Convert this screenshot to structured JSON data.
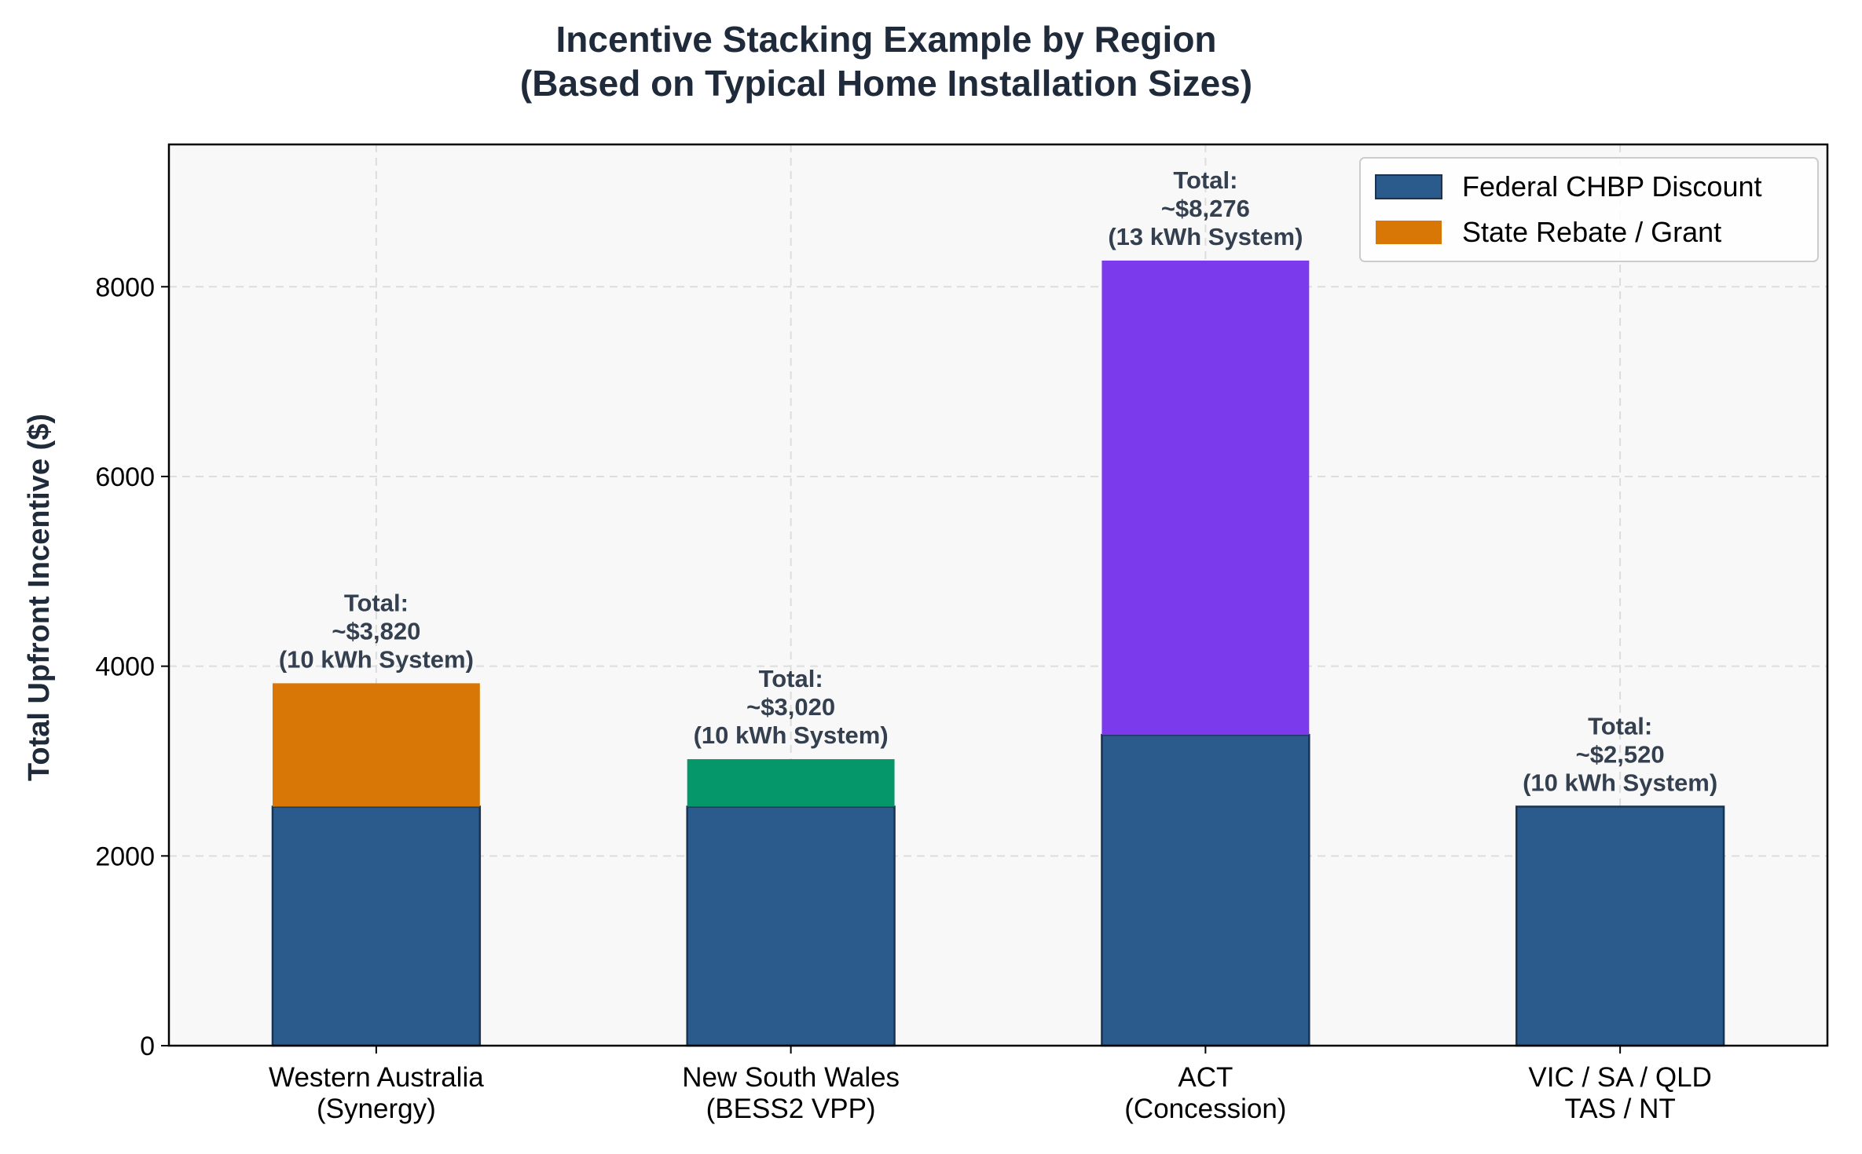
{
  "chart_data": {
    "type": "bar",
    "stacked": true,
    "title_lines": [
      "Incentive Stacking Example by Region",
      "(Based on Typical Home Installation Sizes)"
    ],
    "ylabel": "Total Upfront Incentive ($)",
    "xlabel": "",
    "ylim": [
      0,
      9500
    ],
    "yticks": [
      0,
      2000,
      4000,
      6000,
      8000
    ],
    "grid": true,
    "legend_position": "top-right",
    "categories": [
      [
        "Western Australia",
        "(Synergy)"
      ],
      [
        "New South Wales",
        "(BESS2 VPP)"
      ],
      [
        "ACT",
        "(Concession)"
      ],
      [
        "VIC / SA / QLD",
        "TAS / NT"
      ]
    ],
    "series": [
      {
        "name": "Federal CHBP Discount",
        "values": [
          2520,
          2520,
          3276,
          2520
        ],
        "colors": [
          "#2a5b8c",
          "#2a5b8c",
          "#2a5b8c",
          "#2a5b8c"
        ]
      },
      {
        "name": "State Rebate / Grant",
        "values": [
          1300,
          500,
          5000,
          0
        ],
        "colors": [
          "#d97706",
          "#059669",
          "#7c3aed",
          "#d97706"
        ]
      }
    ],
    "annotations": [
      [
        "Total:",
        "~$3,820",
        "(10 kWh System)"
      ],
      [
        "Total:",
        "~$3,020",
        "(10 kWh System)"
      ],
      [
        "Total:",
        "~$8,276",
        "(13 kWh System)"
      ],
      [
        "Total:",
        "~$2,520",
        "(10 kWh System)"
      ]
    ],
    "legend": [
      {
        "label": "Federal CHBP Discount",
        "color": "#2a5b8c"
      },
      {
        "label": "State Rebate / Grant",
        "color": "#d97706"
      }
    ],
    "colors": {
      "plot_bg": "#f8f8f8",
      "grid": "#dddddd",
      "bar_edge": "#1a3350"
    }
  }
}
